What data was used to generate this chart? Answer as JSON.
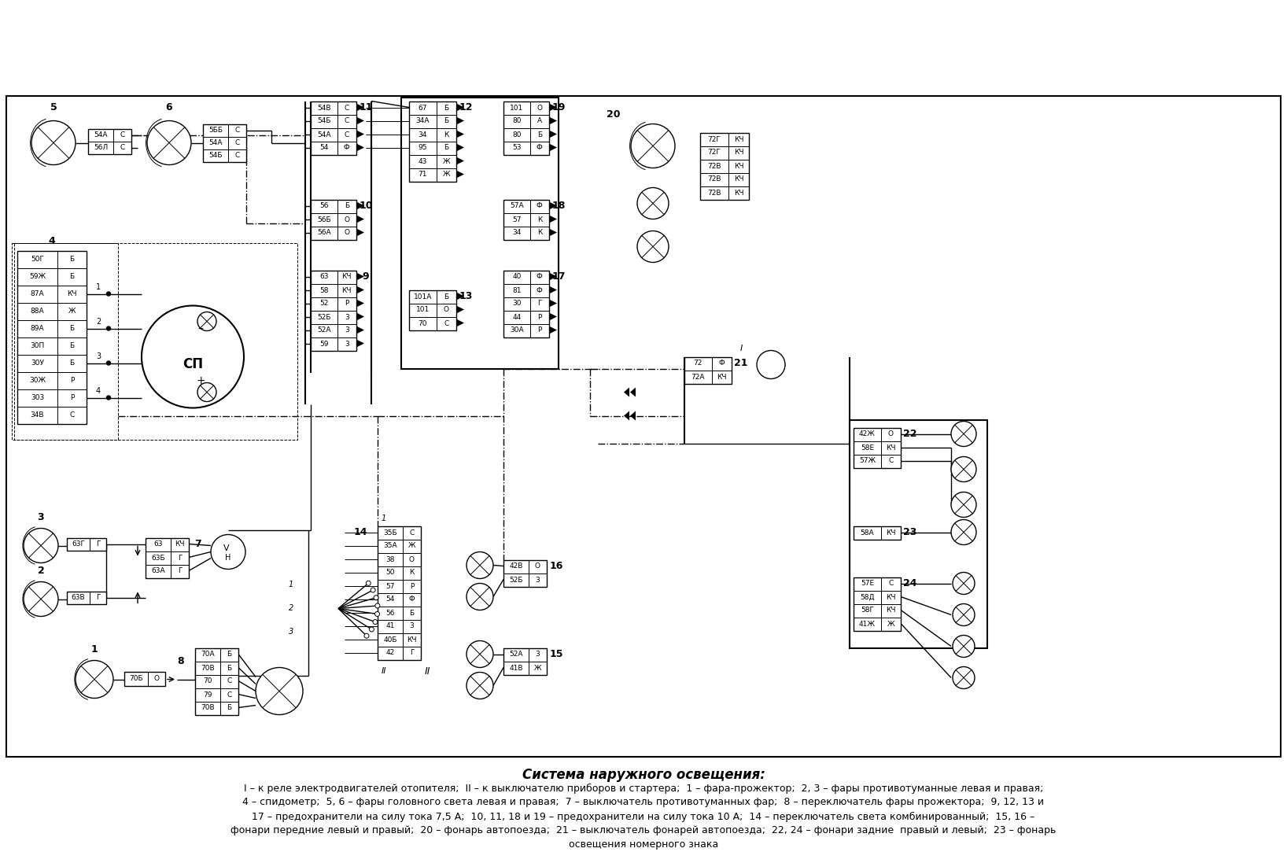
{
  "title": "Система наружного освещения:",
  "caption_lines": [
    "I – к реле электродвигателей отопителя;  II – к выключателю приборов и стартера;  1 – фара-прожектор;  2, 3 – фары противотуманные левая и правая;",
    "4 – спидометр;  5, 6 – фары головного света левая и правая;  7 – выключатель противотуманных фар;  8 – переключатель фары прожектора;  9, 12, 13 и",
    "17 – предохранители на силу тока 7,5 А;  10, 11, 18 и 19 – предохранители на силу тока 10 А;  14 – переключатель света комбинированный;  15, 16 –",
    "фонари передние левый и правый;  20 – фонарь автопоезда;  21 – выключатель фонарей автопоезда;  22, 24 – фонари задние  правый и левый;  23 – фонарь",
    "освещения номерного знака"
  ],
  "bg_color": "#ffffff",
  "fg_color": "#000000",
  "title_fontsize": 12,
  "caption_fontsize": 9,
  "use_image": true
}
